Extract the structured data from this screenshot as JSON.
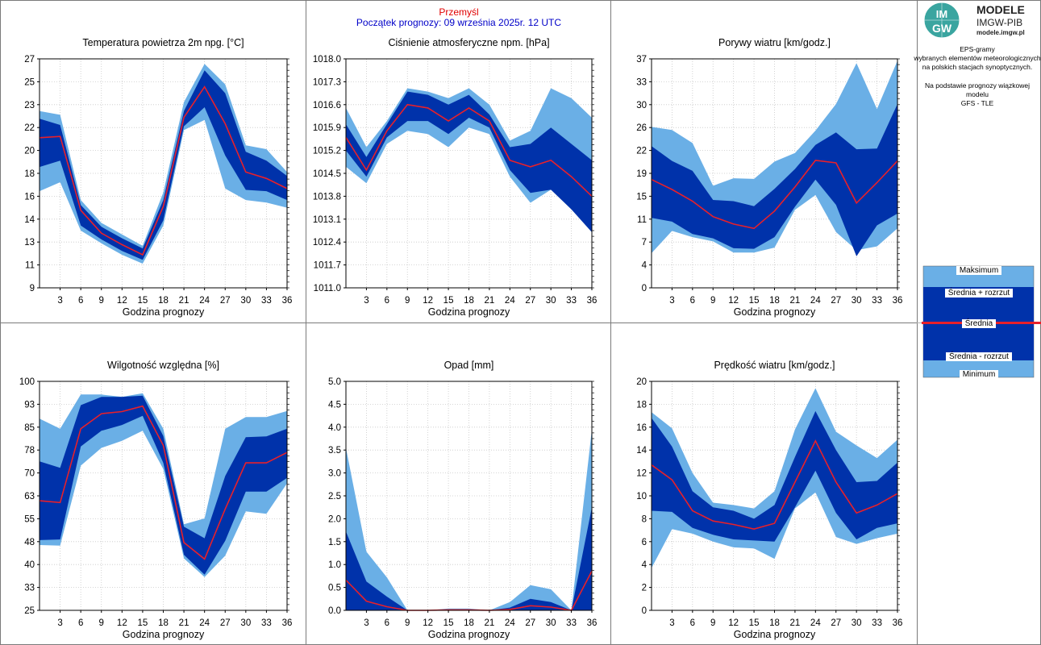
{
  "header": {
    "station": "Przemyśl",
    "forecast_start": "Początek prognozy: 09 września 2025r. 12 UTC"
  },
  "logo": {
    "mark_top": "IM",
    "mark_bottom": "GW",
    "title": "MODELE",
    "subtitle": "IMGW-PIB",
    "url": "modele.imgw.pl"
  },
  "sidebar": {
    "desc_lines": [
      "EPS-gramy",
      "wybranych elementów meteorologicznych",
      "na polskich stacjach  synoptycznych."
    ],
    "source_lines": [
      "Na podstawie prognozy wiązkowej modelu",
      "GFS - TLE"
    ]
  },
  "legend": {
    "max": "Maksimum",
    "mean_plus": "Średnia + rozrzut",
    "mean": "Średnia",
    "mean_minus": "Średnia - rozrzut",
    "min": "Minimum"
  },
  "colors": {
    "light_band": "#6aafe6",
    "dark_band": "#0032aa",
    "mean_line": "#e8202a",
    "header_station": "#e00000",
    "header_start": "#0000c8"
  },
  "chart_data": [
    {
      "type": "area",
      "title": "Temperatura powietrza 2m npg. [°C]",
      "xlabel": "Godzina prognozy",
      "x": [
        0,
        3,
        6,
        9,
        12,
        15,
        18,
        21,
        24,
        27,
        30,
        33,
        36
      ],
      "xticks": [
        "3",
        "6",
        "9",
        "12",
        "15",
        "18",
        "21",
        "24",
        "27",
        "30",
        "33",
        "36"
      ],
      "ylim": [
        9,
        27
      ],
      "yticks": [
        "9",
        "11",
        "13",
        "14",
        "16",
        "18",
        "20",
        "22",
        "23",
        "25",
        "27"
      ],
      "series": [
        {
          "name": "Maksimum",
          "values": [
            22.9,
            22.6,
            15.9,
            14.1,
            13.2,
            12.3,
            16.5,
            23.6,
            26.6,
            25.0,
            20.2,
            19.9,
            18.1
          ]
        },
        {
          "name": "Średnia + rozrzut",
          "values": [
            22.3,
            21.8,
            15.5,
            13.8,
            12.9,
            12.1,
            15.9,
            22.9,
            26.1,
            24.3,
            19.7,
            19.0,
            17.8
          ]
        },
        {
          "name": "Średnia",
          "values": [
            20.8,
            20.9,
            15.1,
            13.3,
            12.4,
            11.6,
            15.4,
            22.4,
            24.8,
            21.9,
            18.1,
            17.6,
            16.8
          ]
        },
        {
          "name": "Średnia - rozrzut",
          "values": [
            18.5,
            19.0,
            13.9,
            12.8,
            11.9,
            11.2,
            14.3,
            21.7,
            23.2,
            19.4,
            16.7,
            16.6,
            15.9
          ]
        },
        {
          "name": "Minimum",
          "values": [
            16.6,
            17.3,
            13.5,
            12.5,
            11.6,
            10.9,
            13.9,
            21.4,
            22.2,
            16.8,
            15.9,
            15.7,
            15.3
          ]
        }
      ]
    },
    {
      "type": "area",
      "title": "Ciśnienie atmosferyczne npm. [hPa]",
      "xlabel": "Godzina prognozy",
      "x": [
        0,
        3,
        6,
        9,
        12,
        15,
        18,
        21,
        24,
        27,
        30,
        33,
        36
      ],
      "xticks": [
        "3",
        "6",
        "9",
        "12",
        "15",
        "18",
        "21",
        "24",
        "27",
        "30",
        "33",
        "36"
      ],
      "ylim": [
        1011.0,
        1018.0
      ],
      "yticks": [
        "1011.0",
        "1011.7",
        "1012.4",
        "1013.1",
        "1013.8",
        "1014.5",
        "1015.2",
        "1015.9",
        "1016.6",
        "1017.3",
        "1018.0"
      ],
      "series": [
        {
          "name": "Maksimum",
          "values": [
            1016.5,
            1015.3,
            1016.1,
            1017.1,
            1017.0,
            1016.8,
            1017.1,
            1016.6,
            1015.5,
            1015.8,
            1017.1,
            1016.8,
            1016.2
          ]
        },
        {
          "name": "Średnia + rozrzut",
          "values": [
            1016.0,
            1015.0,
            1016.0,
            1017.0,
            1016.9,
            1016.6,
            1016.9,
            1016.3,
            1015.3,
            1015.4,
            1015.9,
            1015.4,
            1014.9
          ]
        },
        {
          "name": "Średnia",
          "values": [
            1015.6,
            1014.6,
            1015.8,
            1016.6,
            1016.5,
            1016.1,
            1016.5,
            1016.1,
            1014.9,
            1014.7,
            1014.9,
            1014.4,
            1013.8
          ]
        },
        {
          "name": "Średnia - rozrzut",
          "values": [
            1015.2,
            1014.4,
            1015.6,
            1016.1,
            1016.1,
            1015.7,
            1016.2,
            1015.9,
            1014.6,
            1013.9,
            1014.0,
            1013.4,
            1012.7
          ]
        },
        {
          "name": "Minimum",
          "values": [
            1014.7,
            1014.2,
            1015.4,
            1015.8,
            1015.7,
            1015.3,
            1015.9,
            1015.7,
            1014.4,
            1013.6,
            1014.0,
            1013.4,
            1012.7
          ]
        }
      ]
    },
    {
      "type": "area",
      "title": "Porywy wiatru [km/godz.]",
      "xlabel": "Godzina prognozy",
      "x": [
        0,
        3,
        6,
        9,
        12,
        15,
        18,
        21,
        24,
        27,
        30,
        33,
        36
      ],
      "xticks": [
        "3",
        "6",
        "9",
        "12",
        "15",
        "18",
        "21",
        "24",
        "27",
        "30",
        "33",
        "36"
      ],
      "ylim": [
        0,
        37
      ],
      "yticks": [
        "0",
        "4",
        "7",
        "11",
        "15",
        "19",
        "22",
        "26",
        "30",
        "33",
        "37"
      ],
      "series": [
        {
          "name": "Maksimum",
          "values": [
            26.0,
            25.5,
            23.4,
            16.5,
            17.7,
            17.6,
            20.4,
            21.8,
            25.4,
            29.7,
            36.3,
            28.9,
            36.7
          ]
        },
        {
          "name": "Średnia + rozrzut",
          "values": [
            22.9,
            20.5,
            18.9,
            14.2,
            14.0,
            13.2,
            16.0,
            19.2,
            23.1,
            25.1,
            22.4,
            22.5,
            29.7
          ]
        },
        {
          "name": "Średnia",
          "values": [
            17.5,
            15.9,
            14.0,
            11.5,
            10.3,
            9.6,
            12.4,
            16.3,
            20.6,
            20.2,
            13.7,
            17.0,
            20.5
          ]
        },
        {
          "name": "Średnia - rozrzut",
          "values": [
            11.3,
            10.7,
            8.7,
            8.0,
            6.4,
            6.3,
            8.2,
            13.1,
            17.5,
            13.4,
            5.1,
            10.1,
            12.0
          ]
        },
        {
          "name": "Minimum",
          "values": [
            5.6,
            9.2,
            8.2,
            7.5,
            5.7,
            5.7,
            6.5,
            12.6,
            15.0,
            9.0,
            6.1,
            6.7,
            9.6
          ]
        }
      ]
    },
    {
      "type": "area",
      "title": "Wilgotność względna [%]",
      "xlabel": "Godzina prognozy",
      "x": [
        0,
        3,
        6,
        9,
        12,
        15,
        18,
        21,
        24,
        27,
        30,
        33,
        36
      ],
      "xticks": [
        "3",
        "6",
        "9",
        "12",
        "15",
        "18",
        "21",
        "24",
        "27",
        "30",
        "33",
        "36"
      ],
      "ylim": [
        25,
        100
      ],
      "yticks": [
        "25",
        "33",
        "40",
        "48",
        "55",
        "63",
        "70",
        "78",
        "85",
        "93",
        "100"
      ],
      "series": [
        {
          "name": "Maksimum",
          "values": [
            87.8,
            84.5,
            95.7,
            95.7,
            94.9,
            96.1,
            84.5,
            53.2,
            55.1,
            84.5,
            88.3,
            88.3,
            90.3
          ]
        },
        {
          "name": "Średnia + rozrzut",
          "values": [
            73.8,
            71.7,
            92.2,
            94.9,
            94.9,
            95.3,
            82.1,
            52.4,
            48.6,
            69.0,
            81.7,
            82.0,
            84.5
          ]
        },
        {
          "name": "Średnia",
          "values": [
            60.9,
            60.3,
            84.5,
            89.4,
            90.1,
            91.9,
            79.0,
            47.2,
            41.8,
            58.2,
            73.3,
            73.3,
            76.7
          ]
        },
        {
          "name": "Średnia - rozrzut",
          "values": [
            48.0,
            48.2,
            78.7,
            83.8,
            85.7,
            88.7,
            73.3,
            43.2,
            36.7,
            47.8,
            63.9,
            63.9,
            68.4
          ]
        },
        {
          "name": "Minimum",
          "values": [
            46.4,
            46.2,
            72.4,
            78.2,
            80.5,
            83.8,
            71.3,
            42.0,
            35.9,
            42.9,
            57.4,
            56.6,
            66.6
          ]
        }
      ]
    },
    {
      "type": "area",
      "title": "Opad [mm]",
      "xlabel": "Godzina prognozy",
      "x": [
        0,
        3,
        6,
        9,
        12,
        15,
        18,
        21,
        24,
        27,
        30,
        33,
        36
      ],
      "xticks": [
        "3",
        "6",
        "9",
        "12",
        "15",
        "18",
        "21",
        "24",
        "27",
        "30",
        "33",
        "36"
      ],
      "ylim": [
        0.0,
        5.0
      ],
      "yticks": [
        "0.0",
        "0.5",
        "1.0",
        "1.5",
        "2.0",
        "2.5",
        "3.0",
        "3.5",
        "4.0",
        "4.5",
        "5.0"
      ],
      "series": [
        {
          "name": "Maksimum",
          "values": [
            3.55,
            1.28,
            0.72,
            0.0,
            0.0,
            0.04,
            0.04,
            0.0,
            0.18,
            0.55,
            0.46,
            0.0,
            3.95
          ]
        },
        {
          "name": "Średnia + rozrzut",
          "values": [
            1.72,
            0.63,
            0.3,
            0.0,
            0.0,
            0.02,
            0.02,
            0.0,
            0.06,
            0.25,
            0.18,
            0.0,
            2.25
          ]
        },
        {
          "name": "Średnia",
          "values": [
            0.66,
            0.2,
            0.08,
            0.0,
            0.0,
            0.01,
            0.01,
            0.0,
            0.02,
            0.1,
            0.07,
            0.0,
            0.86
          ]
        },
        {
          "name": "Średnia - rozrzut",
          "values": [
            0.0,
            0.0,
            0.0,
            0.0,
            0.0,
            0.0,
            0.0,
            0.0,
            0.0,
            0.0,
            0.0,
            0.0,
            0.0
          ]
        },
        {
          "name": "Minimum",
          "values": [
            0.0,
            0.0,
            0.0,
            0.0,
            0.0,
            0.0,
            0.0,
            0.0,
            0.0,
            0.0,
            0.0,
            0.0,
            0.0
          ]
        }
      ]
    },
    {
      "type": "area",
      "title": "Prędkość wiatru [km/godz.]",
      "xlabel": "Godzina prognozy",
      "x": [
        0,
        3,
        6,
        9,
        12,
        15,
        18,
        21,
        24,
        27,
        30,
        33,
        36
      ],
      "xticks": [
        "3",
        "6",
        "9",
        "12",
        "15",
        "18",
        "21",
        "24",
        "27",
        "30",
        "33",
        "36"
      ],
      "ylim": [
        0,
        20
      ],
      "yticks": [
        "0",
        "2",
        "4",
        "6",
        "8",
        "10",
        "12",
        "14",
        "16",
        "18",
        "20"
      ],
      "series": [
        {
          "name": "Maksimum",
          "values": [
            17.3,
            15.9,
            12.0,
            9.4,
            9.2,
            8.9,
            10.4,
            15.8,
            19.4,
            15.6,
            14.4,
            13.3,
            14.9
          ]
        },
        {
          "name": "Średnia + rozrzut",
          "values": [
            16.8,
            14.3,
            10.4,
            9.0,
            8.7,
            8.0,
            9.2,
            13.4,
            17.4,
            14.0,
            11.2,
            11.3,
            12.9
          ]
        },
        {
          "name": "Średnia",
          "values": [
            12.7,
            11.4,
            8.7,
            7.8,
            7.5,
            7.1,
            7.6,
            11.2,
            14.8,
            11.2,
            8.5,
            9.2,
            10.2
          ]
        },
        {
          "name": "Średnia - rozrzut",
          "values": [
            8.7,
            8.6,
            7.2,
            6.6,
            6.2,
            6.1,
            6.0,
            9.0,
            12.2,
            8.5,
            6.2,
            7.2,
            7.6
          ]
        },
        {
          "name": "Minimum",
          "values": [
            3.7,
            7.1,
            6.7,
            6.0,
            5.5,
            5.4,
            4.5,
            8.9,
            10.3,
            6.4,
            5.8,
            6.3,
            6.7
          ]
        }
      ]
    }
  ]
}
